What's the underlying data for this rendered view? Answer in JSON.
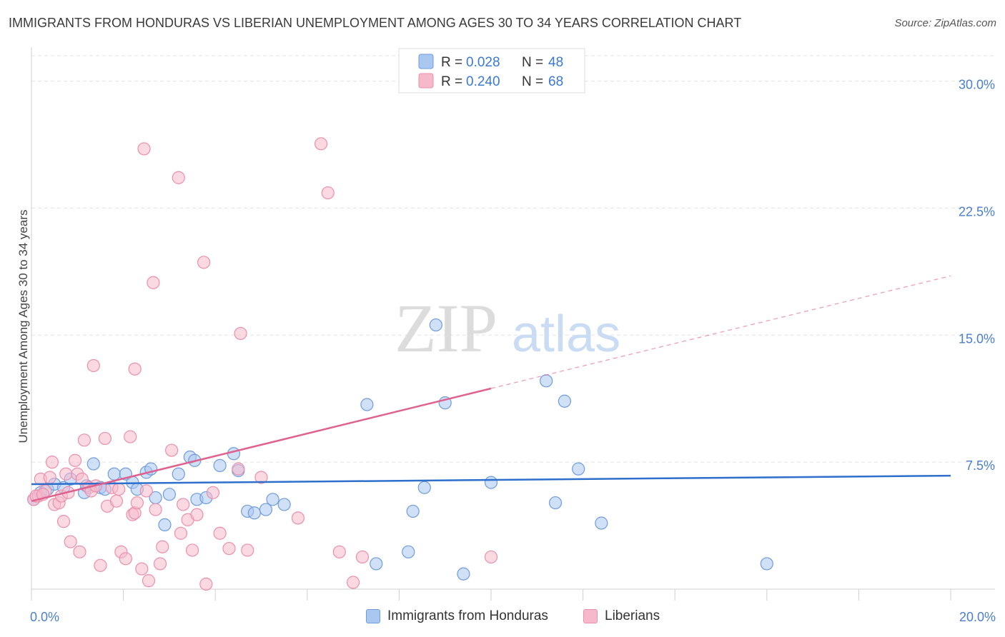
{
  "title": "IMMIGRANTS FROM HONDURAS VS LIBERIAN UNEMPLOYMENT AMONG AGES 30 TO 34 YEARS CORRELATION CHART",
  "source": "Source: ZipAtlas.com",
  "watermark": {
    "zip": "ZIP",
    "atlas": "atlas"
  },
  "colors": {
    "blue_fill": "#a9c7ef",
    "blue_stroke": "#6f9be0",
    "blue_line": "#2d6fcb",
    "pink_fill": "#f6b9cc",
    "pink_stroke": "#ec8fab",
    "pink_line": "#e0608e",
    "axis_text": "#4a7fcf",
    "grid": "#e3e3e3"
  },
  "stats_legend": [
    {
      "r_label": "R = ",
      "r_value": "0.028",
      "n_label": "N = ",
      "n_value": "48"
    },
    {
      "r_label": "R = ",
      "r_value": "0.240",
      "n_label": "N = ",
      "n_value": "68"
    }
  ],
  "chart_data": {
    "type": "scatter",
    "title": "IMMIGRANTS FROM HONDURAS VS LIBERIAN UNEMPLOYMENT AMONG AGES 30 TO 34 YEARS CORRELATION CHART",
    "xlabel": "",
    "ylabel": "Unemployment Among Ages 30 to 34 years",
    "xlim": [
      0,
      20
    ],
    "ylim": [
      0,
      31.5
    ],
    "x_tick_labels": [
      {
        "value": 0,
        "label": "0.0%"
      },
      {
        "value": 20,
        "label": "20.0%"
      }
    ],
    "y_tick_labels": [
      {
        "value": 7.5,
        "label": "7.5%"
      },
      {
        "value": 15,
        "label": "15.0%"
      },
      {
        "value": 22.5,
        "label": "22.5%"
      },
      {
        "value": 30,
        "label": "30.0%"
      }
    ],
    "series": [
      {
        "name": "Immigrants from Honduras",
        "color": "blue",
        "trend": {
          "x0": 0,
          "y0": 6.2,
          "x1": 20,
          "y1": 6.7,
          "dashed_from": null
        },
        "points": [
          [
            0.05,
            5.3
          ],
          [
            0.2,
            5.7
          ],
          [
            0.35,
            5.9
          ],
          [
            0.5,
            6.2
          ],
          [
            0.7,
            6.0
          ],
          [
            0.85,
            6.5
          ],
          [
            1.15,
            5.7
          ],
          [
            1.2,
            6.1
          ],
          [
            1.35,
            7.4
          ],
          [
            1.5,
            6.0
          ],
          [
            1.6,
            5.9
          ],
          [
            1.8,
            6.8
          ],
          [
            2.05,
            6.8
          ],
          [
            2.2,
            6.3
          ],
          [
            2.3,
            5.9
          ],
          [
            2.5,
            6.9
          ],
          [
            2.6,
            7.1
          ],
          [
            2.9,
            3.8
          ],
          [
            2.7,
            5.4
          ],
          [
            3.0,
            5.6
          ],
          [
            3.2,
            6.8
          ],
          [
            3.45,
            7.8
          ],
          [
            3.55,
            7.6
          ],
          [
            3.6,
            5.3
          ],
          [
            3.8,
            5.4
          ],
          [
            4.1,
            7.3
          ],
          [
            4.4,
            8.0
          ],
          [
            4.5,
            7.0
          ],
          [
            4.7,
            4.6
          ],
          [
            4.85,
            4.5
          ],
          [
            5.1,
            4.7
          ],
          [
            5.25,
            5.3
          ],
          [
            5.5,
            5.0
          ],
          [
            7.3,
            10.9
          ],
          [
            7.5,
            1.5
          ],
          [
            8.2,
            2.2
          ],
          [
            8.3,
            4.6
          ],
          [
            8.55,
            6.0
          ],
          [
            8.8,
            15.6
          ],
          [
            9.0,
            11.0
          ],
          [
            9.4,
            0.9
          ],
          [
            10.0,
            6.3
          ],
          [
            11.2,
            12.3
          ],
          [
            11.4,
            5.1
          ],
          [
            11.6,
            11.1
          ],
          [
            11.9,
            7.1
          ],
          [
            12.4,
            3.9
          ],
          [
            16.0,
            1.5
          ]
        ]
      },
      {
        "name": "Liberians",
        "color": "pink",
        "trend": {
          "x0": 0,
          "y0": 5.2,
          "x1": 20,
          "y1": 18.5,
          "dashed_from": 10.0
        },
        "points": [
          [
            0.05,
            5.3
          ],
          [
            0.15,
            5.5
          ],
          [
            0.2,
            6.5
          ],
          [
            0.3,
            5.8
          ],
          [
            0.45,
            7.5
          ],
          [
            0.5,
            5.0
          ],
          [
            0.6,
            5.1
          ],
          [
            0.7,
            4.0
          ],
          [
            0.75,
            6.8
          ],
          [
            0.85,
            2.8
          ],
          [
            0.95,
            7.6
          ],
          [
            1.0,
            6.8
          ],
          [
            1.05,
            2.2
          ],
          [
            1.1,
            6.5
          ],
          [
            1.15,
            8.8
          ],
          [
            1.25,
            6.0
          ],
          [
            1.3,
            5.8
          ],
          [
            1.4,
            6.1
          ],
          [
            1.5,
            1.4
          ],
          [
            1.6,
            8.9
          ],
          [
            1.65,
            4.9
          ],
          [
            1.75,
            6.0
          ],
          [
            1.85,
            5.2
          ],
          [
            1.95,
            2.2
          ],
          [
            2.05,
            1.8
          ],
          [
            2.15,
            9.0
          ],
          [
            2.2,
            4.4
          ],
          [
            2.25,
            4.5
          ],
          [
            2.3,
            5.1
          ],
          [
            2.4,
            1.2
          ],
          [
            2.55,
            0.5
          ],
          [
            2.7,
            4.7
          ],
          [
            2.8,
            1.5
          ],
          [
            2.85,
            2.5
          ],
          [
            3.05,
            8.2
          ],
          [
            3.2,
            24.3
          ],
          [
            3.3,
            5.0
          ],
          [
            3.4,
            4.1
          ],
          [
            3.5,
            2.3
          ],
          [
            3.6,
            4.4
          ],
          [
            3.75,
            19.3
          ],
          [
            3.8,
            0.3
          ],
          [
            3.95,
            5.7
          ],
          [
            4.1,
            3.3
          ],
          [
            4.3,
            2.4
          ],
          [
            4.5,
            7.1
          ],
          [
            4.55,
            15.1
          ],
          [
            4.7,
            2.3
          ],
          [
            5.0,
            6.6
          ],
          [
            5.8,
            4.2
          ],
          [
            6.3,
            26.3
          ],
          [
            6.45,
            23.4
          ],
          [
            6.7,
            2.2
          ],
          [
            7.0,
            0.4
          ],
          [
            7.2,
            1.9
          ],
          [
            10.0,
            1.9
          ],
          [
            0.1,
            5.5
          ],
          [
            0.25,
            5.6
          ],
          [
            0.4,
            6.6
          ],
          [
            0.65,
            5.5
          ],
          [
            0.8,
            5.7
          ],
          [
            1.35,
            13.2
          ],
          [
            2.25,
            13.0
          ],
          [
            2.65,
            18.1
          ],
          [
            2.45,
            26.0
          ],
          [
            3.25,
            3.3
          ],
          [
            2.5,
            5.8
          ],
          [
            1.9,
            5.9
          ]
        ]
      }
    ]
  },
  "bottom_legend": [
    {
      "label": "Immigrants from Honduras",
      "color": "blue"
    },
    {
      "label": "Liberians",
      "color": "pink"
    }
  ]
}
